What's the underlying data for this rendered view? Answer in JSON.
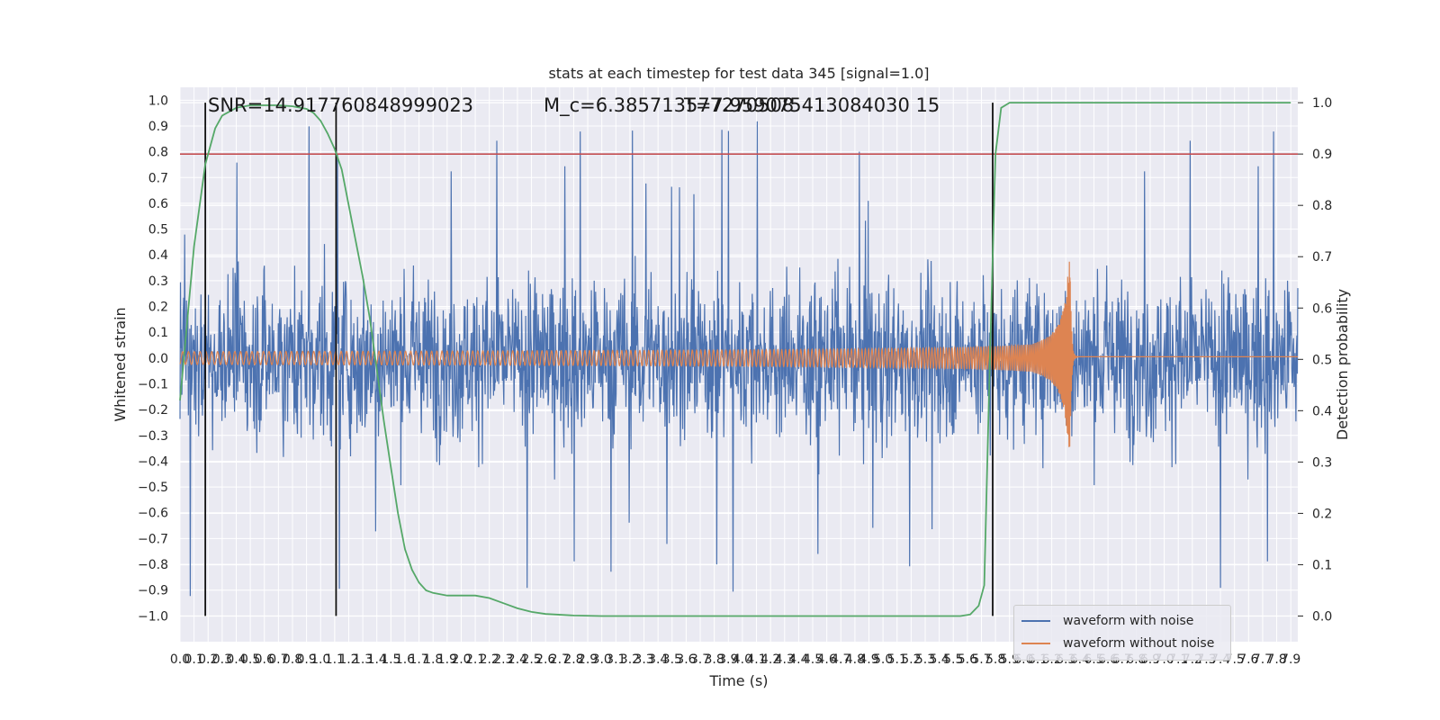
{
  "chart_data": {
    "type": "line",
    "title": "stats at each timestep for test data 345 [signal=1.0]",
    "xlabel": "Time (s)",
    "ylabel_left": "Whitened strain",
    "ylabel_right": "Detection probability",
    "xlim": [
      0.0,
      7.95
    ],
    "ylim_left": [
      -1.1,
      1.05
    ],
    "ylim_right": [
      -0.05,
      1.03
    ],
    "x_ticks": [
      "0.0",
      "0.1",
      "0.2",
      "0.3",
      "0.4",
      "0.5",
      "0.6",
      "0.7",
      "0.8",
      "0.9",
      "1.0",
      "1.1",
      "1.2",
      "1.3",
      "1.4",
      "1.5",
      "1.6",
      "1.7",
      "1.8",
      "1.9",
      "2.0",
      "2.1",
      "2.2",
      "2.3",
      "2.4",
      "2.5",
      "2.6",
      "2.7",
      "2.8",
      "2.9",
      "3.0",
      "3.1",
      "3.2",
      "3.3",
      "3.4",
      "3.5",
      "3.6",
      "3.7",
      "3.8",
      "3.9",
      "4.0",
      "4.1",
      "4.2",
      "4.3",
      "4.4",
      "4.5",
      "4.6",
      "4.7",
      "4.8",
      "4.9",
      "5.0",
      "5.1",
      "5.2",
      "5.3",
      "5.4",
      "5.5",
      "5.6",
      "5.7",
      "5.8",
      "5.9",
      "6.0",
      "6.1",
      "6.2",
      "6.3",
      "6.4",
      "6.5",
      "6.6",
      "6.7",
      "6.8",
      "6.9",
      "7.0",
      "7.1",
      "7.2",
      "7.3",
      "7.4",
      "7.5",
      "7.6",
      "7.7",
      "7.8",
      "7.9"
    ],
    "y_ticks_left": [
      "1.0",
      "0.9",
      "0.8",
      "0.7",
      "0.6",
      "0.5",
      "0.4",
      "0.3",
      "0.2",
      "0.1",
      "0.0",
      "-0.1",
      "-0.2",
      "-0.3",
      "-0.4",
      "-0.5",
      "-0.6",
      "-0.7",
      "-0.8",
      "-0.9",
      "-1.0"
    ],
    "y_ticks_right": [
      "1.0",
      "0.9",
      "0.8",
      "0.7",
      "0.6",
      "0.5",
      "0.4",
      "0.3",
      "0.2",
      "0.1",
      "0.0"
    ],
    "grid": true,
    "legend_position": "bottom-right",
    "annotations": [
      {
        "text": "SNR=14.917760848999023"
      },
      {
        "text": "M_c=6.385713577270508"
      },
      {
        "text": "T=7.959075413084030 15"
      }
    ],
    "threshold_right": 0.9,
    "vertical_lines_x": [
      0.18,
      1.11,
      5.78
    ],
    "series": [
      {
        "name": "waveform with noise",
        "color": "#4c72b0",
        "axis": "left",
        "description_values": {
          "amplitude_typical": 0.45,
          "peaks_max": 0.94,
          "peaks_min": -0.96
        }
      },
      {
        "name": "waveform without noise",
        "color": "#dd8452",
        "axis": "left",
        "description_values": {
          "start_amplitude": 0.025,
          "merger_time": 6.33,
          "peak_amplitude": 0.44,
          "ringdown_offset": 0.005
        }
      },
      {
        "name": "detection probability",
        "color": "#55a868",
        "axis": "right",
        "points": [
          [
            0.0,
            0.42
          ],
          [
            0.1,
            0.72
          ],
          [
            0.18,
            0.88
          ],
          [
            0.25,
            0.95
          ],
          [
            0.3,
            0.975
          ],
          [
            0.4,
            0.99
          ],
          [
            0.5,
            0.995
          ],
          [
            0.6,
            0.995
          ],
          [
            0.7,
            0.995
          ],
          [
            0.8,
            0.993
          ],
          [
            0.9,
            0.988
          ],
          [
            0.95,
            0.98
          ],
          [
            1.0,
            0.965
          ],
          [
            1.05,
            0.94
          ],
          [
            1.1,
            0.91
          ],
          [
            1.15,
            0.87
          ],
          [
            1.2,
            0.8
          ],
          [
            1.25,
            0.73
          ],
          [
            1.3,
            0.66
          ],
          [
            1.35,
            0.58
          ],
          [
            1.4,
            0.48
          ],
          [
            1.45,
            0.38
          ],
          [
            1.5,
            0.29
          ],
          [
            1.55,
            0.2
          ],
          [
            1.6,
            0.13
          ],
          [
            1.65,
            0.09
          ],
          [
            1.7,
            0.065
          ],
          [
            1.75,
            0.05
          ],
          [
            1.8,
            0.045
          ],
          [
            1.9,
            0.04
          ],
          [
            2.0,
            0.04
          ],
          [
            2.1,
            0.04
          ],
          [
            2.2,
            0.035
          ],
          [
            2.3,
            0.025
          ],
          [
            2.4,
            0.015
          ],
          [
            2.5,
            0.008
          ],
          [
            2.6,
            0.004
          ],
          [
            2.8,
            0.001
          ],
          [
            3.0,
            0.0
          ],
          [
            4.0,
            0.0
          ],
          [
            5.0,
            0.0
          ],
          [
            5.55,
            0.0
          ],
          [
            5.62,
            0.003
          ],
          [
            5.68,
            0.02
          ],
          [
            5.72,
            0.06
          ],
          [
            5.76,
            0.5
          ],
          [
            5.8,
            0.9
          ],
          [
            5.84,
            0.99
          ],
          [
            5.9,
            1.0
          ],
          [
            6.5,
            1.0
          ],
          [
            7.0,
            1.0
          ],
          [
            7.5,
            1.0
          ],
          [
            7.9,
            1.0
          ]
        ]
      }
    ]
  }
}
